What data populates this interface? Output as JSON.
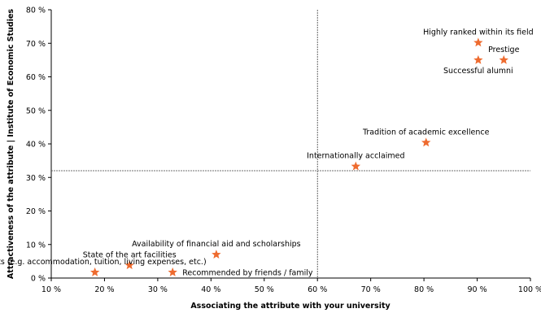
{
  "chart_data": {
    "type": "scatter",
    "title": "",
    "xlabel": "Associating the attribute with your university",
    "ylabel": "Attractiveness of the attribute | Institute of Economic Studies",
    "xlim": [
      10,
      100
    ],
    "ylim": [
      0,
      80
    ],
    "x_ticks": [
      10,
      20,
      30,
      40,
      50,
      60,
      70,
      80,
      90,
      100
    ],
    "y_ticks": [
      0,
      10,
      20,
      30,
      40,
      50,
      60,
      70,
      80
    ],
    "x_tick_labels": [
      "10 %",
      "20 %",
      "30 %",
      "40 %",
      "50 %",
      "60 %",
      "70 %",
      "80 %",
      "90 %",
      "100 %"
    ],
    "y_tick_labels": [
      "0 %",
      "10 %",
      "20 %",
      "30 %",
      "40 %",
      "50 %",
      "60 %",
      "70 %",
      "80 %"
    ],
    "reference_lines": {
      "x": 60,
      "y": 32
    },
    "marker": "star",
    "marker_color": "#ee6b2f",
    "grid": false,
    "points": [
      {
        "label": "Highly ranked within its field",
        "x": 90.2,
        "y": 70.2,
        "label_pos": "above"
      },
      {
        "label": "Prestige",
        "x": 95.0,
        "y": 65.0,
        "label_pos": "above"
      },
      {
        "label": "Successful alumni",
        "x": 90.2,
        "y": 65.0,
        "label_pos": "below"
      },
      {
        "label": "Tradition of academic excellence",
        "x": 80.4,
        "y": 40.4,
        "label_pos": "above"
      },
      {
        "label": "Internationally acclaimed",
        "x": 67.2,
        "y": 33.3,
        "label_pos": "above"
      },
      {
        "label": "Availability of financial aid and scholarships",
        "x": 41.0,
        "y": 7.0,
        "label_pos": "above"
      },
      {
        "label": "State of the art facilities",
        "x": 24.7,
        "y": 3.8,
        "label_pos": "above"
      },
      {
        "label": "Costs (e.g. accommodation, tuition, living expenses, etc.)",
        "x": 18.2,
        "y": 1.7,
        "label_pos": "above"
      },
      {
        "label": "Recommended by friends / family",
        "x": 32.8,
        "y": 1.7,
        "label_pos": "right"
      }
    ]
  }
}
